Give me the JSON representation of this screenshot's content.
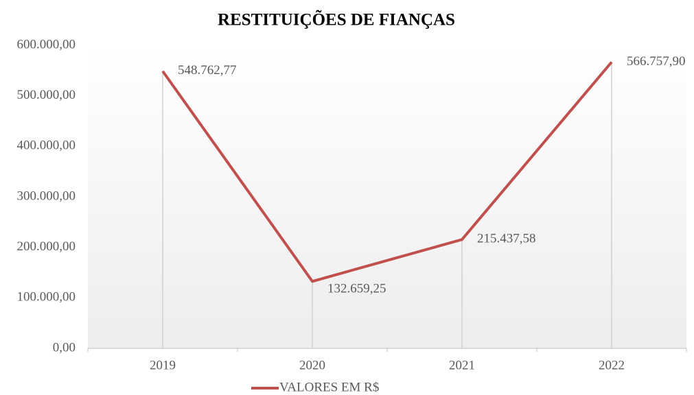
{
  "chart_data": {
    "type": "line",
    "title": "RESTITUIÇÕES DE FIANÇAS",
    "categories": [
      "2019",
      "2020",
      "2021",
      "2022"
    ],
    "series": [
      {
        "name": "VALORES EM R$",
        "color": "#c0504d",
        "values": [
          548762.77,
          132659.25,
          215437.58,
          566757.9
        ],
        "value_labels": [
          "548.762,77",
          "132.659,25",
          "215.437,58",
          "566.757,90"
        ]
      }
    ],
    "ylim": [
      0,
      600000
    ],
    "yticks": [
      {
        "value": 0,
        "label": "0,00"
      },
      {
        "value": 100000,
        "label": "100.000,00"
      },
      {
        "value": 200000,
        "label": "200.000,00"
      },
      {
        "value": 300000,
        "label": "300.000,00"
      },
      {
        "value": 400000,
        "label": "400.000,00"
      },
      {
        "value": 500000,
        "label": "500.000,00"
      },
      {
        "value": 600000,
        "label": "600.000,00"
      }
    ],
    "grid": false,
    "legend": "bottom"
  }
}
